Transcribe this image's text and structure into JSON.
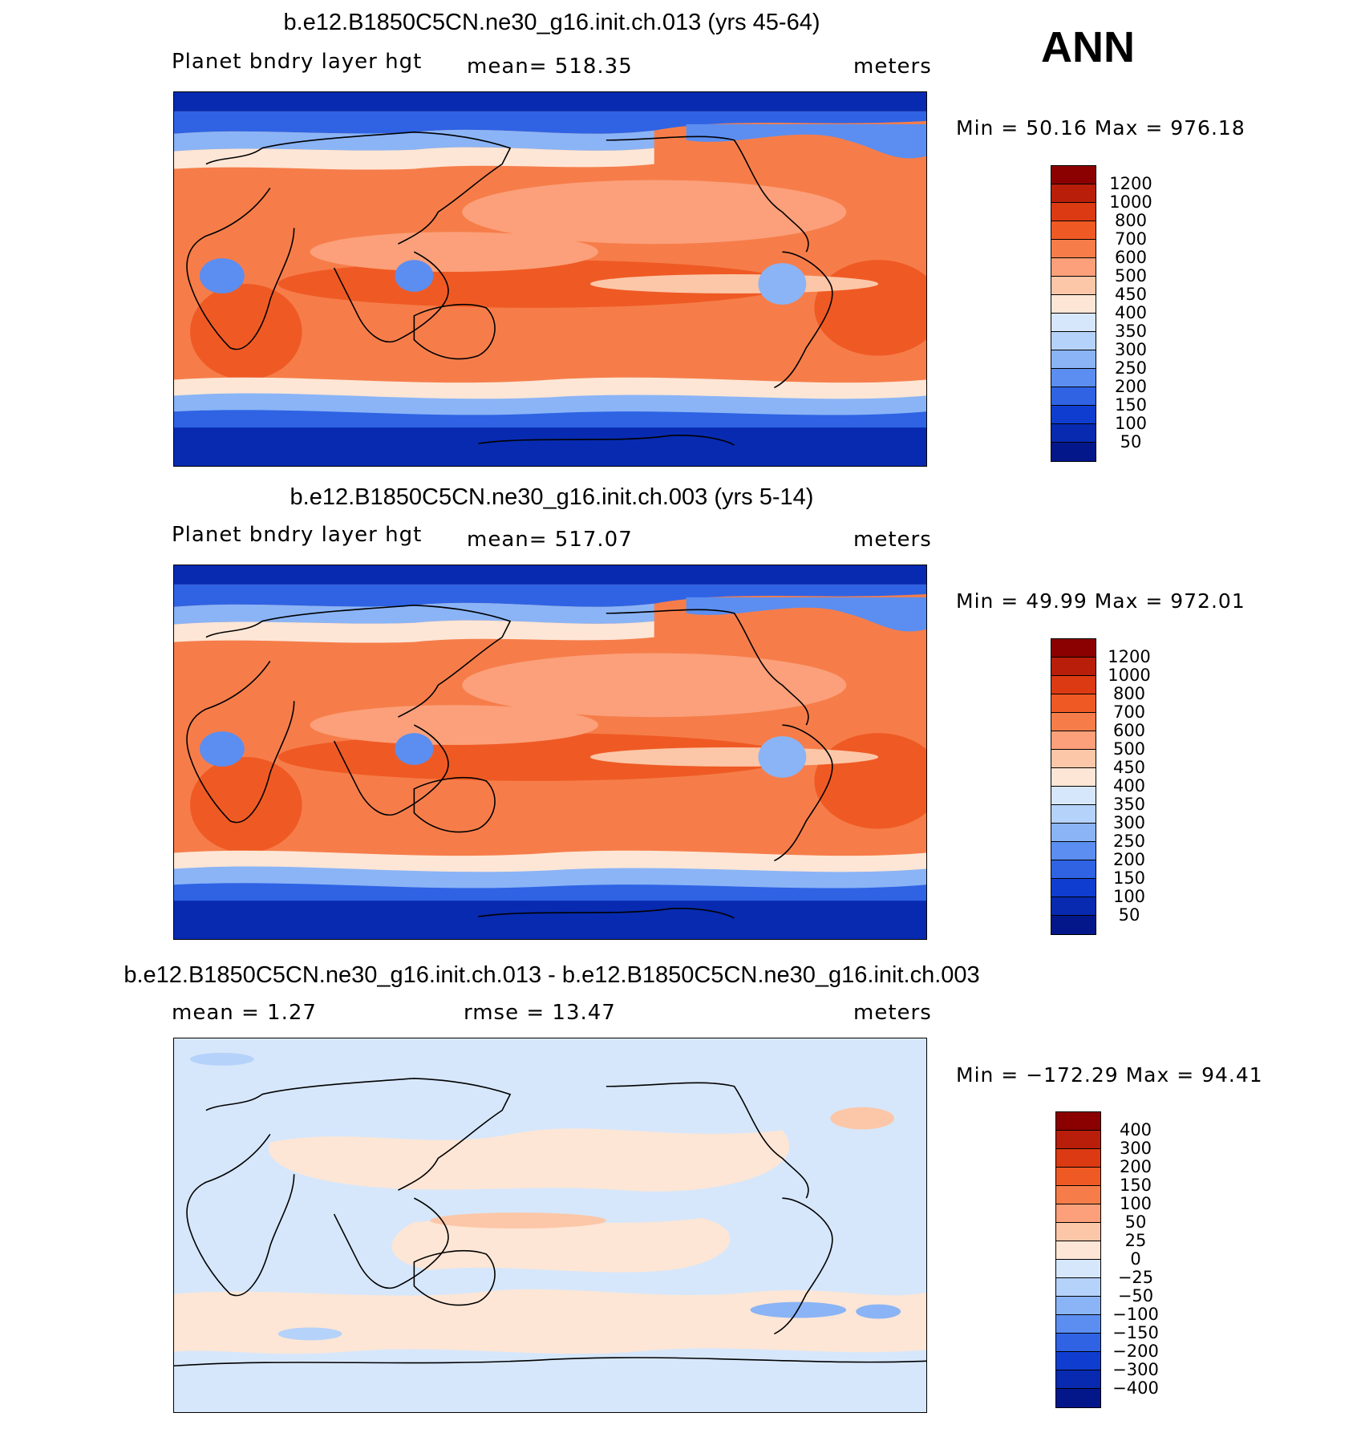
{
  "season": "ANN",
  "panels": [
    {
      "title": "b.e12.B1850C5CN.ne30_g16.init.ch.013 (yrs 45-64)",
      "variable": "Planet bndry layer hgt",
      "stat_text": "mean=  518.35",
      "units": "meters",
      "minmax": "Min =   50.16  Max  =  976.18",
      "colorbar_labels": [
        "1200",
        "1000",
        "800",
        "700",
        "600",
        "500",
        "450",
        "400",
        "350",
        "300",
        "250",
        "200",
        "150",
        "100",
        "50"
      ],
      "colorbar_colors": [
        "#8b0000",
        "#b81e0a",
        "#dc3a12",
        "#ef5a24",
        "#f67d4a",
        "#fba07a",
        "#fcc7a8",
        "#fde6d6",
        "#d6e7fb",
        "#b5d2fa",
        "#8ab4f6",
        "#5b8ef0",
        "#2f63e4",
        "#0f3dd0",
        "#072ab0",
        "#04178a"
      ],
      "mean_value": 518.35
    },
    {
      "title": "b.e12.B1850C5CN.ne30_g16.init.ch.003 (yrs 5-14)",
      "variable": "Planet bndry layer hgt",
      "stat_text": "mean=  517.07",
      "units": "meters",
      "minmax": "Min =   49.99  Max  =  972.01",
      "colorbar_labels": [
        "1200",
        "1000",
        "800",
        "700",
        "600",
        "500",
        "450",
        "400",
        "350",
        "300",
        "250",
        "200",
        "150",
        "100",
        "50"
      ],
      "colorbar_colors": [
        "#8b0000",
        "#b81e0a",
        "#dc3a12",
        "#ef5a24",
        "#f67d4a",
        "#fba07a",
        "#fcc7a8",
        "#fde6d6",
        "#d6e7fb",
        "#b5d2fa",
        "#8ab4f6",
        "#5b8ef0",
        "#2f63e4",
        "#0f3dd0",
        "#072ab0",
        "#04178a"
      ],
      "mean_value": 517.07
    },
    {
      "title": "b.e12.B1850C5CN.ne30_g16.init.ch.013 - b.e12.B1850C5CN.ne30_g16.init.ch.003",
      "stat_left": "mean =      1.27",
      "stat_text": "rmse  =     13.47",
      "units": "meters",
      "minmax": "Min  = −172.29  Max  =    94.41",
      "colorbar_labels": [
        "400",
        "300",
        "200",
        "150",
        "100",
        "50",
        "25",
        "0",
        "−25",
        "−50",
        "−100",
        "−150",
        "−200",
        "−300",
        "−400"
      ],
      "colorbar_colors": [
        "#8b0000",
        "#b81e0a",
        "#dc3a12",
        "#ef5a24",
        "#f67d4a",
        "#fba07a",
        "#fcc7a8",
        "#fde6d6",
        "#d6e7fb",
        "#b5d2fa",
        "#8ab4f6",
        "#5b8ef0",
        "#2f63e4",
        "#0f3dd0",
        "#072ab0",
        "#04178a"
      ],
      "mean_value": 1.27
    }
  ]
}
